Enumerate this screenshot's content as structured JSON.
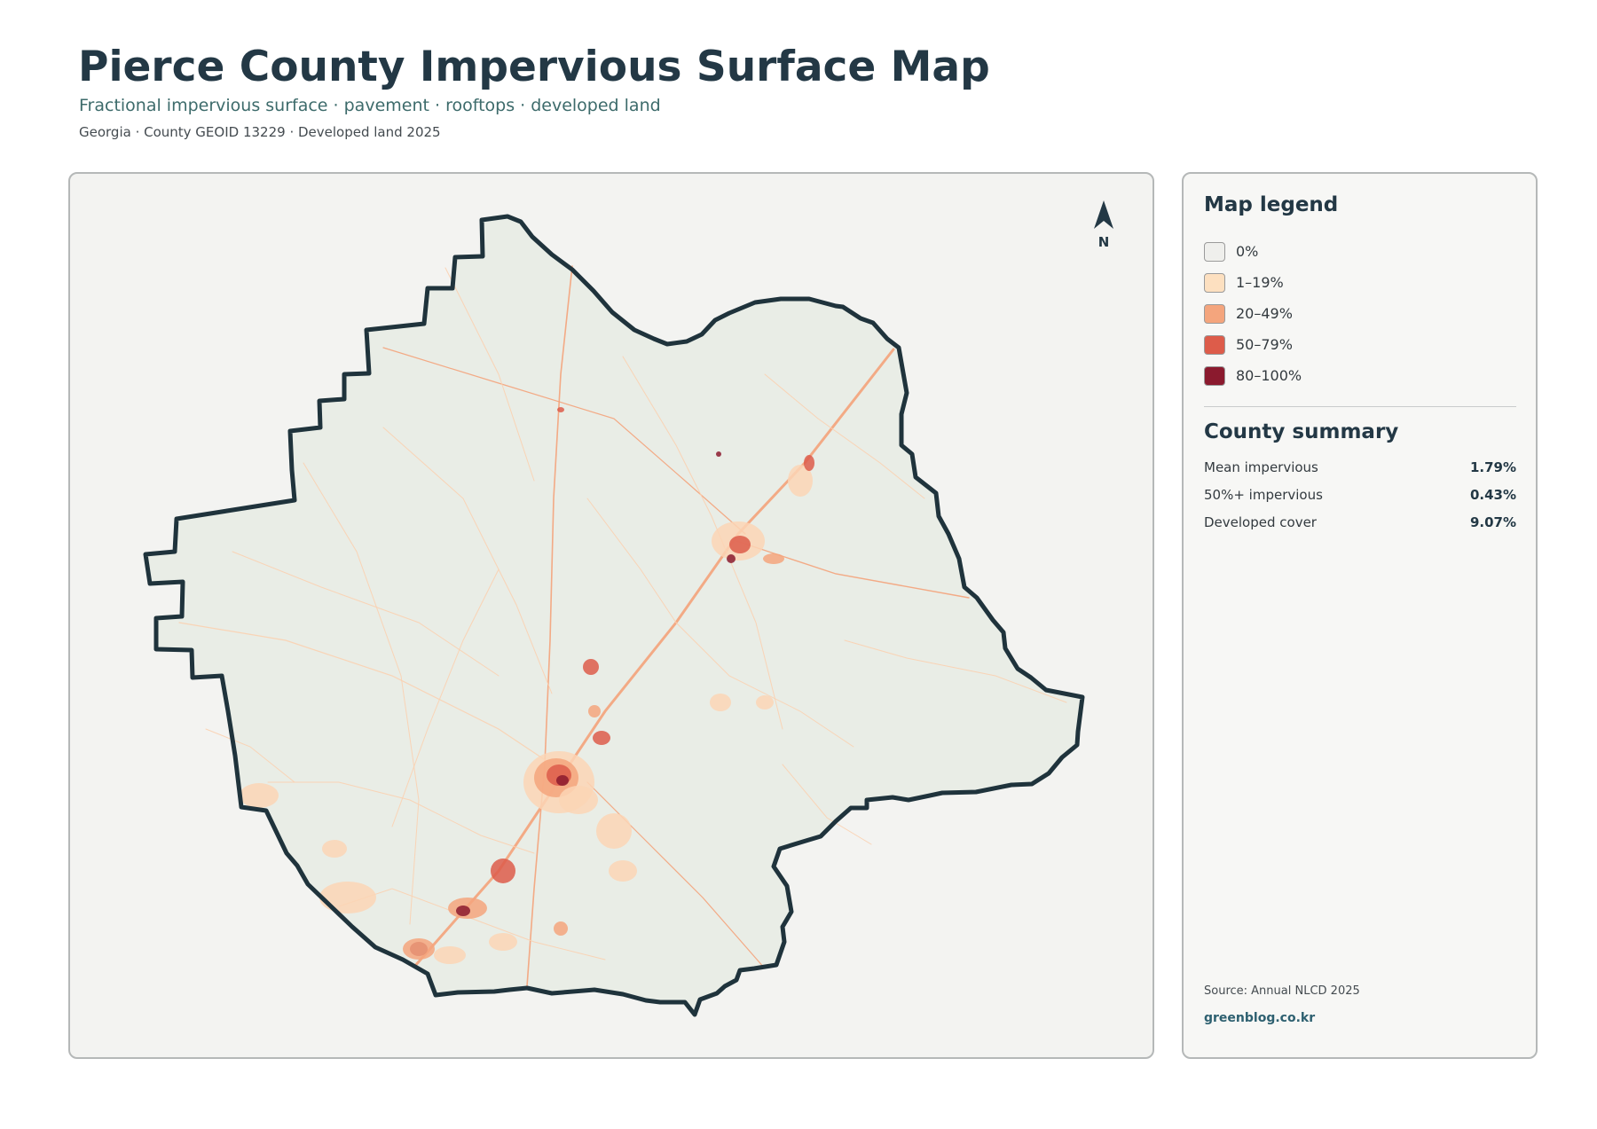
{
  "header": {
    "title": "Pierce County Impervious Surface Map",
    "subtitle": "Fractional impervious surface · pavement · rooftops · developed land",
    "meta": "Georgia · County GEOID 13229 · Developed land 2025"
  },
  "map": {
    "north_label": "N",
    "county_fill": "#e9ede6",
    "boundary_color": "#1f333c",
    "road_color": "#f4a27a",
    "road_light_color": "#fbd0b0",
    "urban_colors": [
      "#fcd5b5",
      "#f4a57d",
      "#dd5c4a",
      "#8b1a2e"
    ]
  },
  "legend": {
    "heading": "Map legend",
    "items": [
      {
        "label": "0%",
        "color": "#efefec"
      },
      {
        "label": "1–19%",
        "color": "#fde0c0"
      },
      {
        "label": "20–49%",
        "color": "#f4a57d"
      },
      {
        "label": "50–79%",
        "color": "#dd5c4a"
      },
      {
        "label": "80–100%",
        "color": "#8b1a2e"
      }
    ]
  },
  "summary": {
    "heading": "County summary",
    "rows": [
      {
        "label": "Mean impervious",
        "value": "1.79%"
      },
      {
        "label": "50%+ impervious",
        "value": "0.43%"
      },
      {
        "label": "Developed cover",
        "value": "9.07%"
      }
    ]
  },
  "footer": {
    "source": "Source: Annual NLCD 2025",
    "site": "greenblog.co.kr"
  }
}
